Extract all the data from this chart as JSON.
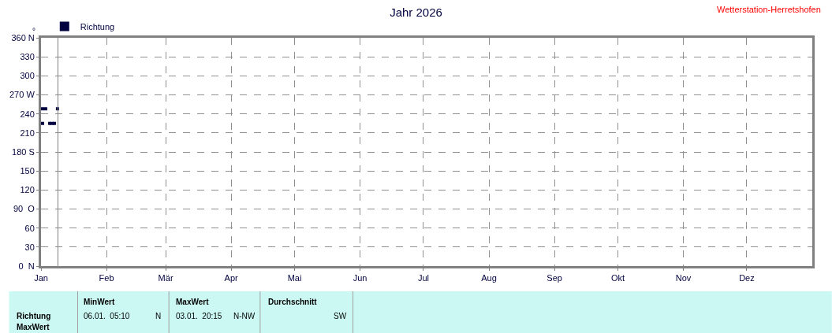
{
  "chart_data": {
    "type": "scatter",
    "title": "Jahr 2026",
    "ylabel": "°",
    "x": [
      "2026-01-01T18:00",
      "2026-01-03T05:00",
      "2026-01-01T18:00",
      "2026-01-05T03:00",
      "2026-01-06T05:00",
      "2026-01-07T08:00",
      "2026-01-08T19:00"
    ],
    "series": [
      {
        "name": "Richtung",
        "color": "#000040",
        "values": [
          248,
          248,
          225,
          225,
          225,
          225,
          248
        ]
      }
    ],
    "xlim": [
      "2026-01-01",
      "2027-01-01"
    ],
    "xticks": [
      {
        "value": "2026-01-01",
        "label": "Jan"
      },
      {
        "value": "2026-02-01",
        "label": "Feb"
      },
      {
        "value": "2026-03-01",
        "label": "Mär"
      },
      {
        "value": "2026-04-01",
        "label": "Apr"
      },
      {
        "value": "2026-05-01",
        "label": "Mai"
      },
      {
        "value": "2026-06-01",
        "label": "Jun"
      },
      {
        "value": "2026-07-01",
        "label": "Jul"
      },
      {
        "value": "2026-08-01",
        "label": "Aug"
      },
      {
        "value": "2026-09-01",
        "label": "Sep"
      },
      {
        "value": "2026-10-01",
        "label": "Okt"
      },
      {
        "value": "2026-11-01",
        "label": "Nov"
      },
      {
        "value": "2026-12-01",
        "label": "Dez"
      }
    ],
    "ylim": [
      0,
      360
    ],
    "yticks": [
      {
        "value": 0,
        "label": "0  N"
      },
      30,
      60,
      {
        "value": 90,
        "label": "90  O"
      },
      120,
      150,
      {
        "value": 180,
        "label": "180 S"
      },
      210,
      240,
      {
        "value": 270,
        "label": "270 W"
      },
      300,
      330,
      {
        "value": 360,
        "label": "360 N"
      }
    ],
    "ref_lines": [
      {
        "axis": "x",
        "value": "2026-01-09",
        "color": "#808080"
      }
    ],
    "grid": true,
    "legend": "top left",
    "marker": "square",
    "annotations": [
      "Wetterstation-Herretshofen",
      "Richtung",
      "MaxWert",
      "MinWert",
      "06.01.  05:10",
      "N",
      "MaxWert",
      "03.01.  20:15",
      "N-NW",
      "Durchschnitt",
      "SW"
    ]
  }
}
